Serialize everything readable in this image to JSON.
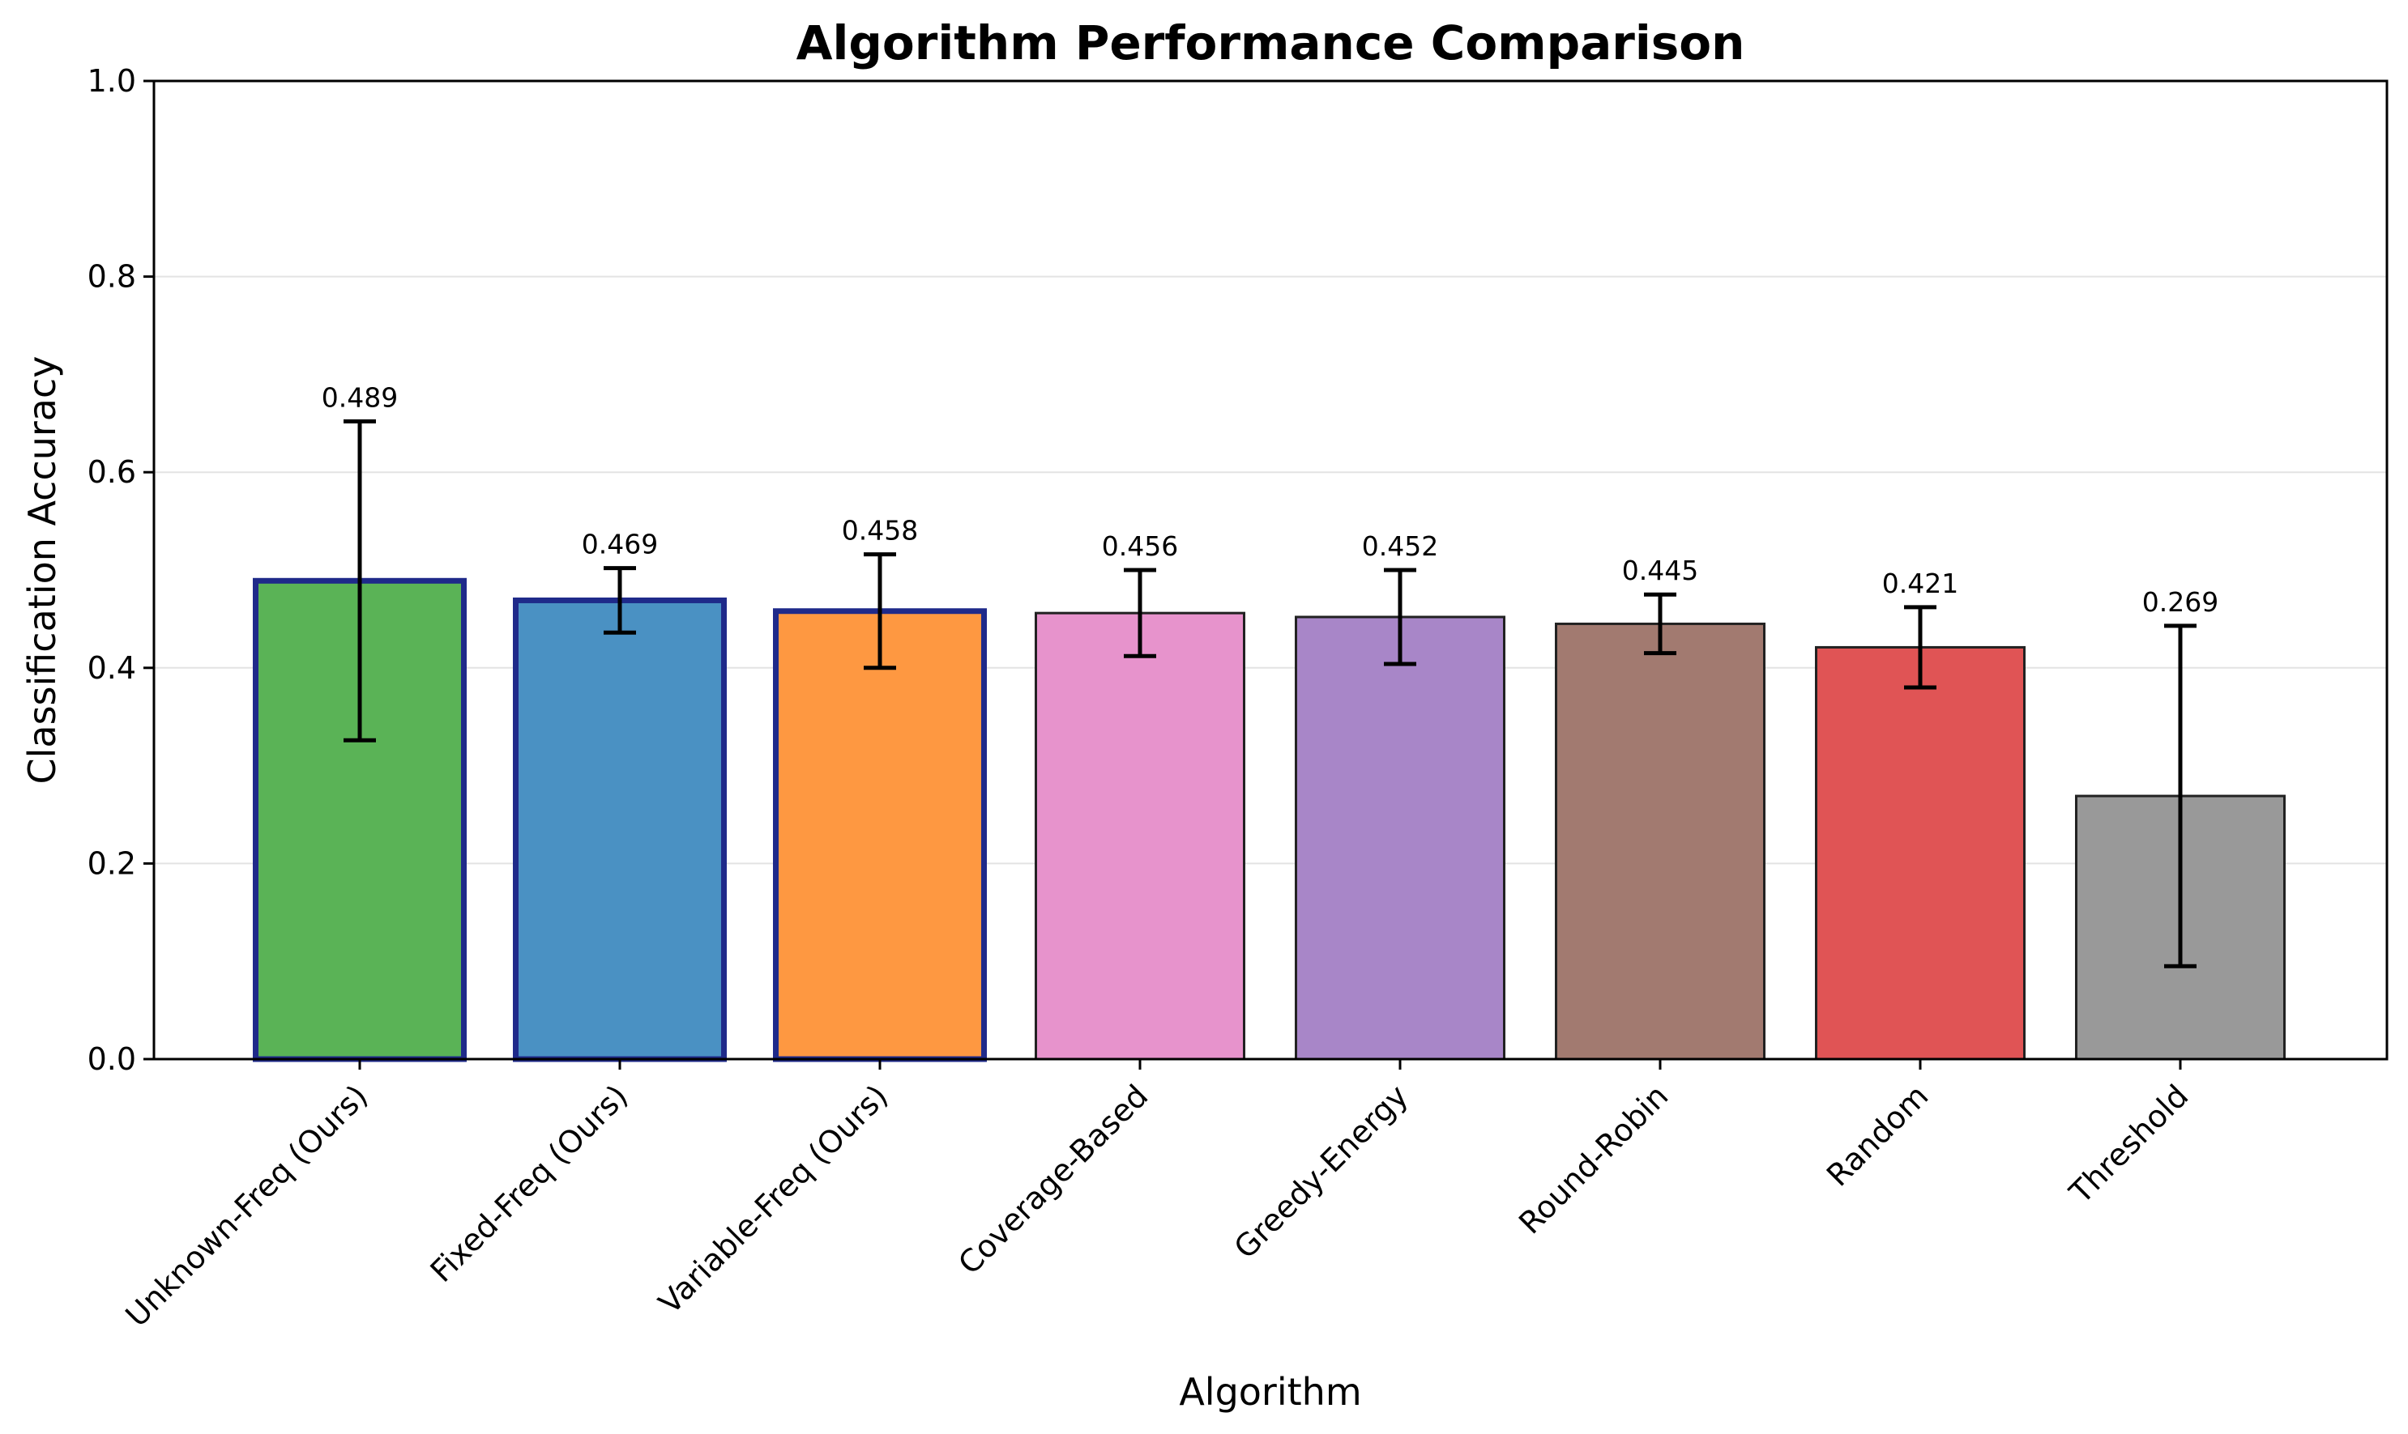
{
  "chart_data": {
    "type": "bar",
    "title": "Algorithm Performance Comparison",
    "xlabel": "Algorithm",
    "ylabel": "Classification Accuracy",
    "ylim": [
      0,
      1.0
    ],
    "yticks": [
      "0.0",
      "0.2",
      "0.4",
      "0.6",
      "0.8",
      "1.0"
    ],
    "grid": "y",
    "categories": [
      "Unknown-Freq (Ours)",
      "Fixed-Freq (Ours)",
      "Variable-Freq (Ours)",
      "Coverage-Based",
      "Greedy-Energy",
      "Round-Robin",
      "Random",
      "Threshold"
    ],
    "values": [
      0.489,
      0.469,
      0.458,
      0.456,
      0.452,
      0.445,
      0.421,
      0.269
    ],
    "value_labels": [
      "0.489",
      "0.469",
      "0.458",
      "0.456",
      "0.452",
      "0.445",
      "0.421",
      "0.269"
    ],
    "errors": [
      0.163,
      0.033,
      0.058,
      0.044,
      0.048,
      0.03,
      0.041,
      0.174
    ],
    "colors": [
      "#5ab356",
      "#4a91c3",
      "#fe9841",
      "#e793cc",
      "#a886c8",
      "#a27a70",
      "#e05455",
      "#999999"
    ],
    "highlighted": [
      true,
      true,
      true,
      false,
      false,
      false,
      false,
      false
    ],
    "highlight_edge_color": "#1f2a8a",
    "edge_color": "#222222"
  }
}
